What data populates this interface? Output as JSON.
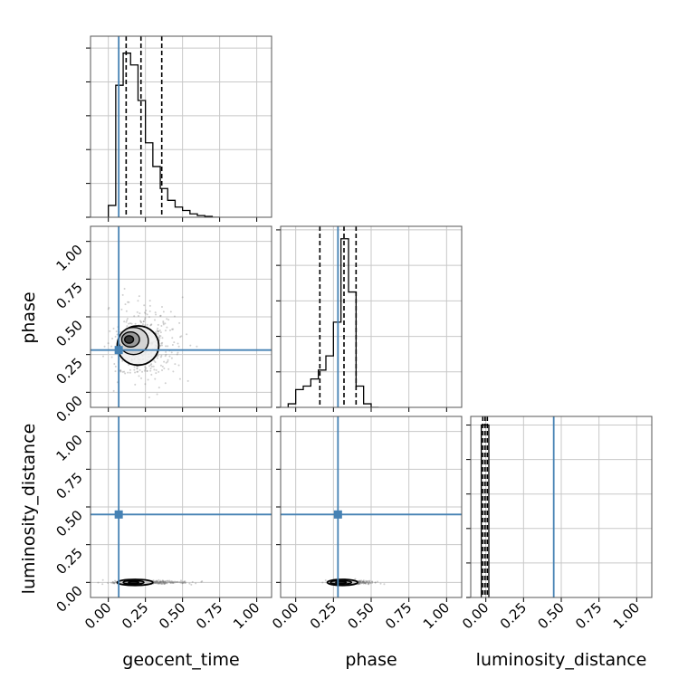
{
  "chart_data": {
    "type": "corner",
    "parameters": [
      "geocent_time",
      "phase",
      "luminosity_distance"
    ],
    "truth": {
      "geocent_time": 0.07,
      "phase": 0.28,
      "luminosity_distance": 0.45
    },
    "colors": {
      "truth": "#4682b4",
      "hist": "#000000",
      "grid": "#c8c8c8"
    },
    "tick_values": [
      0.0,
      0.25,
      0.5,
      0.75,
      1.0
    ],
    "tick_labels": [
      "0.00",
      "0.25",
      "0.50",
      "0.75",
      "1.00"
    ],
    "xlims": {
      "geocent_time": [
        -0.12,
        1.1
      ],
      "phase": [
        -0.1,
        1.1
      ],
      "luminosity_distance": [
        -0.1,
        1.1
      ]
    },
    "ylims": {
      "phase": [
        -0.1,
        1.1
      ],
      "luminosity_distance": [
        -0.1,
        1.1
      ]
    },
    "diag_max": {
      "geocent_time": 1.07,
      "phase": 1.02,
      "luminosity_distance": 1.05
    },
    "histograms": {
      "geocent_time": {
        "edges": [
          0.0,
          0.05,
          0.1,
          0.125,
          0.15,
          0.2,
          0.25,
          0.3,
          0.35,
          0.4,
          0.45,
          0.5,
          0.55,
          0.6,
          0.65,
          0.7,
          0.75
        ],
        "values": [
          0.07,
          0.78,
          0.97,
          0.97,
          0.9,
          0.69,
          0.44,
          0.3,
          0.17,
          0.1,
          0.06,
          0.04,
          0.02,
          0.01,
          0.005,
          0.0
        ],
        "quantiles": [
          0.12,
          0.22,
          0.36
        ]
      },
      "phase": {
        "edges": [
          -0.05,
          0.0,
          0.05,
          0.1,
          0.15,
          0.2,
          0.25,
          0.3,
          0.35,
          0.4,
          0.45,
          0.5,
          0.55
        ],
        "values": [
          0.02,
          0.1,
          0.12,
          0.16,
          0.21,
          0.29,
          0.48,
          0.95,
          0.65,
          0.12,
          0.02,
          0.0
        ],
        "quantiles": [
          0.16,
          0.32,
          0.4
        ]
      },
      "luminosity_distance": {
        "edges": [
          -0.03,
          -0.01,
          0.02
        ],
        "values": [
          1.0,
          1.0
        ],
        "quantiles": [
          -0.02,
          -0.005,
          0.01
        ]
      }
    },
    "panels": [
      {
        "row": "phase",
        "col": "geocent_time"
      },
      {
        "row": "luminosity_distance",
        "col": "geocent_time"
      },
      {
        "row": "luminosity_distance",
        "col": "phase"
      }
    ]
  }
}
